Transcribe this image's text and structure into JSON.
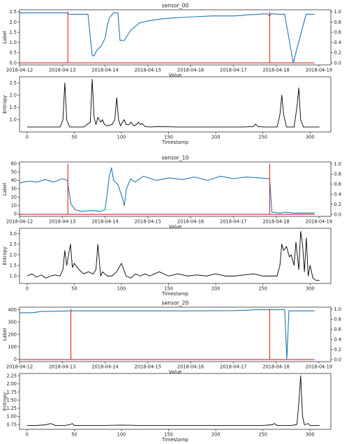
{
  "chart_data": [
    {
      "type": "line",
      "title": "sensor_00",
      "xlabel": "Value",
      "ylabel": "Label",
      "x_ticks": [
        "2018-04-12",
        "2018-04-13",
        "2018-04-14",
        "2018-04-15",
        "2018-04-16",
        "2018-04-17",
        "2018-04-18",
        "2018-04-19"
      ],
      "xlim": [
        0,
        7.28
      ],
      "ylim": [
        -0.1,
        2.6
      ],
      "y_ticks": [
        0.0,
        0.5,
        1.0,
        1.5,
        2.0,
        2.5
      ],
      "y2lim": [
        -0.04,
        1.04
      ],
      "y2_ticks": [
        0.0,
        0.2,
        0.4,
        0.6,
        0.8,
        1.0
      ],
      "series": [
        {
          "color": "#1f77b4",
          "axis": "left",
          "x": [
            0,
            0.45,
            0.9,
            1.1,
            1.15,
            1.35,
            1.6,
            1.7,
            1.75,
            1.8,
            1.9,
            2.0,
            2.05,
            2.1,
            2.2,
            2.3,
            2.35,
            2.45,
            2.6,
            2.8,
            3.0,
            3.3,
            3.6,
            4.0,
            4.5,
            5.0,
            5.2,
            5.3,
            5.6,
            5.7,
            5.75,
            5.8,
            5.85,
            5.88,
            6.1,
            6.2,
            6.4,
            6.7,
            6.9
          ],
          "y": [
            2.45,
            2.45,
            2.45,
            2.45,
            2.38,
            2.38,
            2.38,
            0.35,
            0.35,
            0.6,
            0.8,
            1.2,
            1.8,
            2.2,
            2.45,
            2.45,
            1.1,
            1.1,
            1.6,
            1.95,
            2.05,
            2.15,
            2.2,
            2.25,
            2.3,
            2.3,
            2.32,
            2.35,
            2.38,
            2.4,
            2.4,
            2.4,
            2.3,
            2.4,
            2.38,
            2.38,
            0.0,
            2.38,
            2.38
          ]
        },
        {
          "color": "#d62728",
          "axis": "right",
          "x": [
            0,
            1.13,
            1.13,
            1.13,
            5.85,
            5.85,
            5.85,
            6.9
          ],
          "y": [
            0,
            0,
            1,
            0,
            0,
            1,
            0,
            0
          ]
        }
      ]
    },
    {
      "type": "line",
      "xlabel": "Timestamp",
      "ylabel": "Entropy",
      "xlim": [
        -8,
        322
      ],
      "ylim": [
        0.5,
        2.75
      ],
      "x_ticks": [
        0,
        50,
        100,
        150,
        200,
        250,
        300
      ],
      "y_ticks": [
        1.0,
        1.5,
        2.0,
        2.5
      ],
      "series": [
        {
          "color": "#000000",
          "x": [
            0,
            35,
            38,
            40,
            42,
            45,
            60,
            67,
            69,
            71,
            73,
            75,
            78,
            80,
            82,
            85,
            90,
            93,
            95,
            97,
            99,
            101,
            103,
            105,
            108,
            110,
            113,
            116,
            118,
            120,
            122,
            125,
            130,
            140,
            160,
            200,
            230,
            240,
            242,
            245,
            250,
            265,
            268,
            270,
            272,
            275,
            283,
            286,
            288,
            290,
            293,
            310
          ],
          "y": [
            0.7,
            0.7,
            1.0,
            2.5,
            1.0,
            0.7,
            0.7,
            0.9,
            2.65,
            1.1,
            0.8,
            1.1,
            0.9,
            1.0,
            0.8,
            0.75,
            0.8,
            1.0,
            1.9,
            1.0,
            0.75,
            0.9,
            1.0,
            0.8,
            0.8,
            0.9,
            0.75,
            0.8,
            0.9,
            0.8,
            0.85,
            0.72,
            0.7,
            0.72,
            0.7,
            0.7,
            0.7,
            0.72,
            0.82,
            0.72,
            0.7,
            0.7,
            1.2,
            2.0,
            1.2,
            0.7,
            0.7,
            1.5,
            2.3,
            1.0,
            0.7,
            0.7
          ]
        }
      ]
    },
    {
      "type": "line",
      "title": "sensor_10",
      "xlabel": "Value",
      "ylabel": "Label",
      "x_ticks": [
        "2018-04-12",
        "2018-04-13",
        "2018-04-14",
        "2018-04-15",
        "2018-04-16",
        "2018-04-17",
        "2018-04-18",
        "2018-04-19"
      ],
      "xlim": [
        0,
        7.28
      ],
      "ylim": [
        -3,
        62
      ],
      "y_ticks": [
        0,
        10,
        20,
        30,
        40,
        50,
        60
      ],
      "y2lim": [
        -0.04,
        1.04
      ],
      "y2_ticks": [
        0.0,
        0.2,
        0.4,
        0.6,
        0.8,
        1.0
      ],
      "series": [
        {
          "color": "#1f77b4",
          "axis": "left",
          "x": [
            0,
            0.2,
            0.4,
            0.6,
            0.8,
            1.0,
            1.12,
            1.2,
            1.3,
            1.45,
            1.7,
            1.9,
            2.0,
            2.05,
            2.1,
            2.15,
            2.2,
            2.3,
            2.4,
            2.45,
            2.5,
            2.6,
            2.7,
            2.9,
            3.2,
            3.5,
            3.8,
            4.1,
            4.4,
            4.7,
            5.0,
            5.3,
            5.6,
            5.85,
            5.9,
            6.1,
            6.2,
            6.4,
            6.9
          ],
          "y": [
            37,
            39,
            38,
            41,
            38,
            42,
            40,
            12,
            5,
            3,
            4,
            3,
            5,
            25,
            45,
            55,
            40,
            35,
            20,
            10,
            30,
            42,
            38,
            45,
            40,
            43,
            41,
            44,
            40,
            45,
            42,
            44,
            43,
            42,
            2,
            1,
            2,
            1,
            1
          ]
        },
        {
          "color": "#d62728",
          "axis": "right",
          "x": [
            0,
            1.13,
            1.13,
            1.13,
            5.85,
            5.85,
            5.85,
            6.9
          ],
          "y": [
            0,
            0,
            1,
            0,
            0,
            1,
            0,
            0
          ]
        }
      ]
    },
    {
      "type": "line",
      "xlabel": "Timestamp",
      "ylabel": "Entropy",
      "xlim": [
        -8,
        322
      ],
      "ylim": [
        0.65,
        3.25
      ],
      "x_ticks": [
        0,
        50,
        100,
        150,
        200,
        250,
        300
      ],
      "y_ticks": [
        1.0,
        1.5,
        2.0,
        2.5,
        3.0
      ],
      "series": [
        {
          "color": "#000000",
          "x": [
            0,
            5,
            10,
            15,
            20,
            25,
            30,
            35,
            38,
            40,
            42,
            44,
            46,
            48,
            50,
            55,
            60,
            65,
            70,
            73,
            75,
            78,
            80,
            85,
            90,
            95,
            100,
            105,
            110,
            115,
            120,
            125,
            130,
            140,
            150,
            160,
            170,
            180,
            190,
            200,
            210,
            220,
            230,
            240,
            250,
            260,
            265,
            268,
            270,
            272,
            275,
            278,
            280,
            283,
            285,
            288,
            290,
            292,
            294,
            296,
            298,
            300,
            303,
            306,
            310
          ],
          "y": [
            1.0,
            1.1,
            0.95,
            1.05,
            0.9,
            1.0,
            1.05,
            1.0,
            1.3,
            2.2,
            1.5,
            2.0,
            2.5,
            1.4,
            1.6,
            1.3,
            1.1,
            1.2,
            1.1,
            1.3,
            2.5,
            1.0,
            1.2,
            1.0,
            1.0,
            1.2,
            1.6,
            1.0,
            0.9,
            1.1,
            1.0,
            1.1,
            1.0,
            1.2,
            1.0,
            1.1,
            1.0,
            1.05,
            1.0,
            1.1,
            1.0,
            1.0,
            1.05,
            1.1,
            1.0,
            1.0,
            1.0,
            1.5,
            2.5,
            2.2,
            2.4,
            1.9,
            2.0,
            1.5,
            2.6,
            1.3,
            3.1,
            2.5,
            1.2,
            2.8,
            1.0,
            1.5,
            0.9,
            0.8,
            0.8
          ]
        }
      ]
    },
    {
      "type": "line",
      "title": "sensor_20",
      "xlabel": "Value",
      "ylabel": "Label",
      "x_ticks": [
        "2018-04-12",
        "2018-04-13",
        "2018-04-14",
        "2018-04-15",
        "2018-04-16",
        "2018-04-17",
        "2018-04-18",
        "2018-04-19"
      ],
      "xlim": [
        0,
        7.28
      ],
      "ylim": [
        -20,
        420
      ],
      "y_ticks": [
        0,
        100,
        200,
        300,
        400
      ],
      "y2lim": [
        -0.04,
        1.04
      ],
      "y2_ticks": [
        0.0,
        0.2,
        0.4,
        0.6,
        0.8,
        1.0
      ],
      "series": [
        {
          "color": "#1f77b4",
          "axis": "left",
          "x": [
            0,
            0.3,
            0.5,
            1.0,
            1.2,
            2.0,
            3.0,
            4.0,
            5.0,
            5.3,
            5.5,
            5.8,
            5.85,
            6.0,
            6.2,
            6.25,
            6.3,
            6.9
          ],
          "y": [
            375,
            375,
            385,
            388,
            390,
            390,
            390,
            390,
            392,
            395,
            400,
            400,
            400,
            400,
            400,
            0,
            390,
            390
          ]
        },
        {
          "color": "#d62728",
          "axis": "right",
          "x": [
            0,
            1.2,
            1.2,
            1.2,
            5.85,
            5.85,
            5.85,
            6.9
          ],
          "y": [
            0,
            0,
            1,
            0,
            0,
            1,
            0,
            0
          ]
        }
      ]
    },
    {
      "type": "line",
      "xlabel": "Timestamp",
      "ylabel": "Entropy",
      "xlim": [
        -8,
        322
      ],
      "ylim": [
        0.6,
        2.32
      ],
      "x_ticks": [
        0,
        50,
        100,
        150,
        200,
        250,
        300
      ],
      "y_ticks": [
        0.75,
        1.0,
        1.25,
        1.5,
        1.75,
        2.0,
        2.25
      ],
      "series": [
        {
          "color": "#000000",
          "x": [
            0,
            10,
            20,
            25,
            30,
            40,
            45,
            48,
            50,
            60,
            80,
            100,
            120,
            150,
            180,
            200,
            230,
            250,
            260,
            262,
            265,
            280,
            286,
            288,
            290,
            292,
            294,
            298,
            300,
            310
          ],
          "y": [
            0.72,
            0.72,
            0.74,
            0.78,
            0.72,
            0.72,
            0.74,
            0.78,
            0.72,
            0.72,
            0.72,
            0.73,
            0.72,
            0.72,
            0.72,
            0.72,
            0.72,
            0.72,
            0.74,
            0.78,
            0.72,
            0.72,
            0.75,
            1.4,
            2.25,
            1.0,
            0.74,
            0.78,
            0.72,
            0.72
          ]
        }
      ]
    }
  ]
}
